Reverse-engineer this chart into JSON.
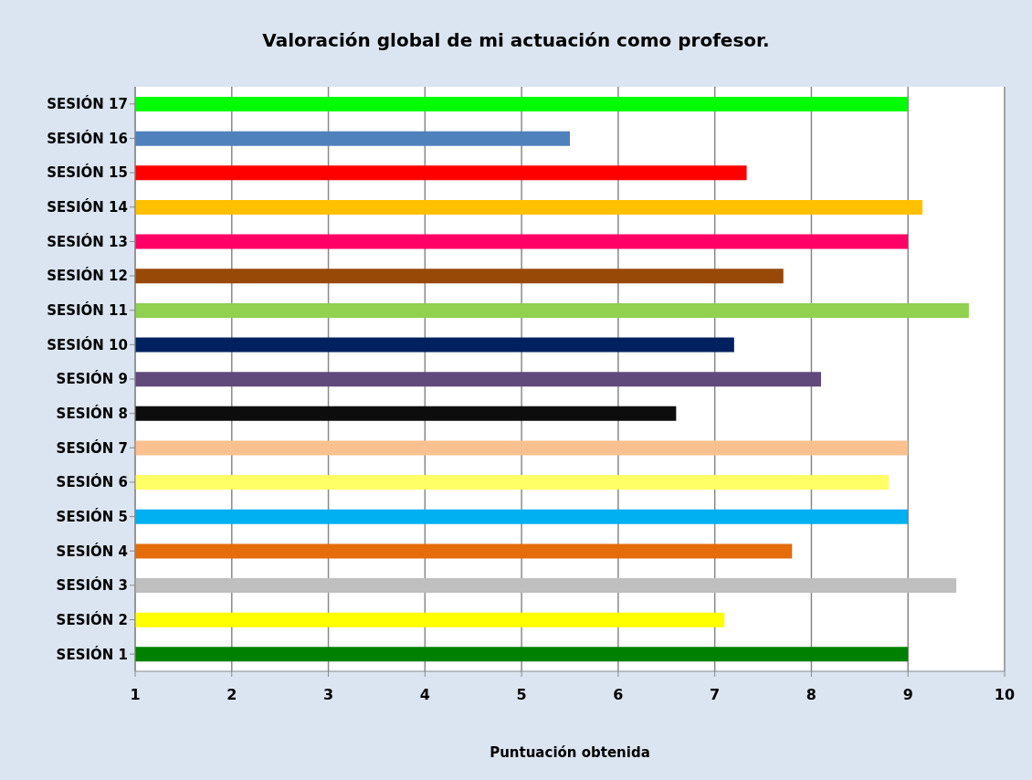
{
  "chart_data": {
    "type": "bar",
    "orientation": "horizontal",
    "title": "Valoración global de mi actuación como profesor.",
    "xlabel": "Puntuación obtenida",
    "categories": [
      "SESIÓN 17",
      "SESIÓN 16",
      "SESIÓN 15",
      "SESIÓN 14",
      "SESIÓN 13",
      "SESIÓN 12",
      "SESIÓN 11",
      "SESIÓN 10",
      "SESIÓN 9",
      "SESIÓN 8",
      "SESIÓN 7",
      "SESIÓN 6",
      "SESIÓN 5",
      "SESIÓN 4",
      "SESIÓN 3",
      "SESIÓN 2",
      "SESIÓN 1"
    ],
    "values": [
      9,
      5.5,
      7.33,
      9.15,
      9,
      7.71,
      9.63,
      7.2,
      8.1,
      6.6,
      9,
      8.8,
      9,
      7.8,
      9.5,
      7.1,
      9
    ],
    "colors": [
      "#00ff00",
      "#4f81bd",
      "#ff0000",
      "#ffc000",
      "#ff0066",
      "#984807",
      "#92d050",
      "#002060",
      "#604a7b",
      "#0d0d0d",
      "#fac090",
      "#ffff66",
      "#00b0f0",
      "#e46c0a",
      "#bfbfbf",
      "#ffff00",
      "#008000"
    ],
    "xlim": [
      1,
      10
    ],
    "xticks": [
      1,
      2,
      3,
      4,
      5,
      6,
      7,
      8,
      9,
      10
    ],
    "grid": "x",
    "legend": false
  }
}
